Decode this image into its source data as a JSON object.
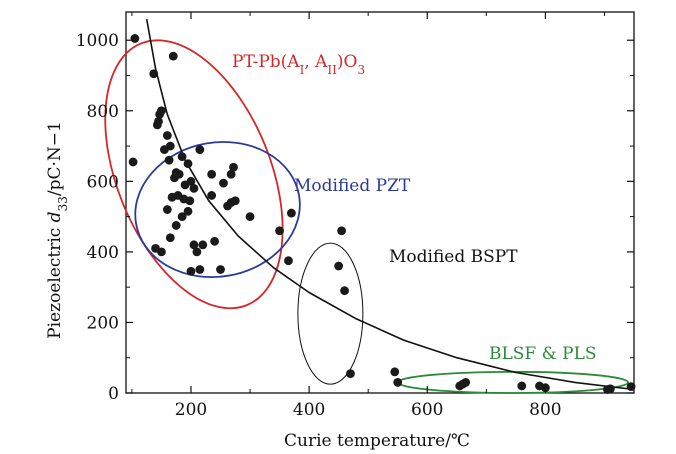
{
  "chart_data": {
    "type": "scatter",
    "xlabel": "Curie temperature/℃",
    "ylabel": "Piezoelectric d33/pC·N−1",
    "xlim": [
      90,
      950
    ],
    "ylim": [
      0,
      1080
    ],
    "xticks": [
      200,
      400,
      600,
      800
    ],
    "yticks": [
      0,
      200,
      400,
      600,
      800,
      1000
    ],
    "grid": false,
    "legend": "none",
    "colors": {
      "points": "#1a1a1a",
      "pt_group": "#d62728",
      "pzt_group": "#2a3a9c",
      "bspt_group": "#111111",
      "blsf_group": "#2a8a3a"
    },
    "annotations": [
      {
        "text": "PT-Pb(AI, AII)O3",
        "color": "#d62728"
      },
      {
        "text": "Modified PZT",
        "color": "#2a3a9c"
      },
      {
        "text": "Modified BSPT",
        "color": "#111111"
      },
      {
        "text": "BLSF & PLS",
        "color": "#2a8a3a"
      }
    ],
    "groups": [
      {
        "label": "PT-Pb(AI, AII)O3",
        "cx": 205,
        "cy": 620,
        "rx": 130,
        "ry": 400,
        "angle": -22
      },
      {
        "label": "Modified PZT",
        "cx": 245,
        "cy": 520,
        "rx": 140,
        "ry": 190,
        "angle": -10
      },
      {
        "label": "Modified BSPT",
        "cx": 436,
        "cy": 225,
        "rx": 55,
        "ry": 200,
        "angle": 0
      },
      {
        "label": "BLSF & PLS",
        "cx": 745,
        "cy": 30,
        "rx": 195,
        "ry": 30,
        "angle": 0
      }
    ],
    "trend": {
      "x": [
        125,
        140,
        160,
        190,
        230,
        280,
        340,
        400,
        480,
        560,
        650,
        750,
        850,
        950
      ],
      "y": [
        1060,
        920,
        790,
        660,
        545,
        445,
        355,
        285,
        210,
        150,
        100,
        58,
        30,
        10
      ]
    },
    "points": {
      "x": [
        105,
        102,
        137,
        170,
        147,
        150,
        145,
        143,
        160,
        155,
        165,
        163,
        175,
        185,
        195,
        172,
        180,
        190,
        200,
        205,
        168,
        178,
        188,
        198,
        215,
        160,
        150,
        140,
        165,
        175,
        185,
        195,
        200,
        205,
        210,
        215,
        220,
        235,
        240,
        250,
        255,
        262,
        268,
        272,
        275,
        300,
        350,
        235,
        268,
        370,
        365,
        455,
        450,
        460,
        470,
        545,
        550,
        655,
        660,
        665,
        760,
        790,
        800,
        905,
        910,
        945
      ],
      "y": [
        1005,
        655,
        905,
        955,
        790,
        800,
        770,
        760,
        730,
        690,
        700,
        660,
        625,
        670,
        650,
        610,
        620,
        590,
        600,
        580,
        555,
        560,
        550,
        545,
        690,
        520,
        400,
        410,
        440,
        475,
        500,
        515,
        345,
        420,
        400,
        350,
        420,
        620,
        430,
        350,
        595,
        530,
        620,
        640,
        545,
        500,
        460,
        560,
        540,
        510,
        375,
        460,
        360,
        290,
        55,
        60,
        30,
        20,
        25,
        30,
        20,
        20,
        15,
        10,
        12,
        18
      ]
    }
  }
}
